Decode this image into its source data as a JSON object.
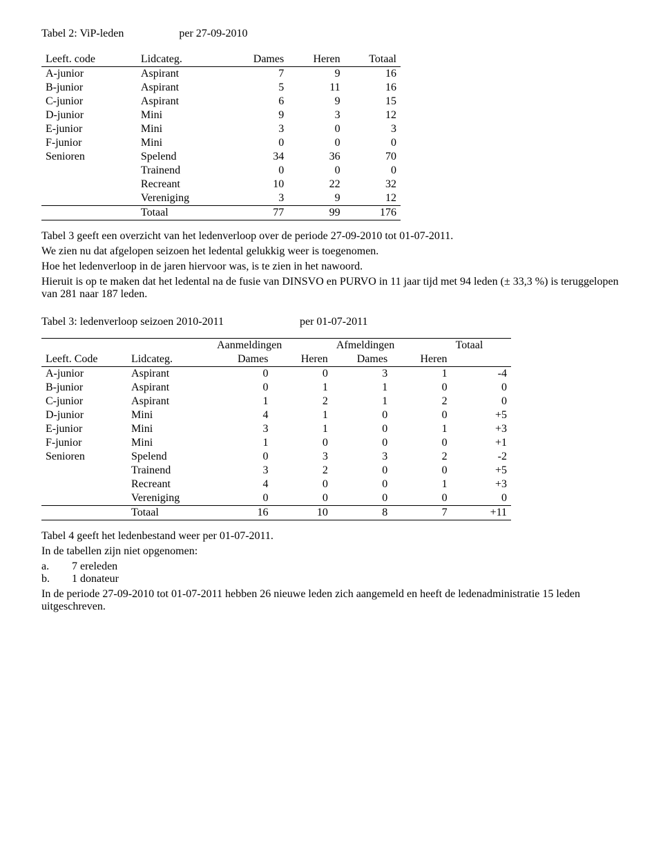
{
  "table2": {
    "title": "Tabel 2: ViP-leden",
    "date": "per 27-09-2010",
    "headers": {
      "c1": "Leeft. code",
      "c2": "Lidcateg.",
      "c3": "Dames",
      "c4": "Heren",
      "c5": "Totaal"
    },
    "rows": [
      {
        "c1": "A-junior",
        "c2": "Aspirant",
        "d": "7",
        "h": "9",
        "t": "16"
      },
      {
        "c1": "B-junior",
        "c2": "Aspirant",
        "d": "5",
        "h": "11",
        "t": "16"
      },
      {
        "c1": "C-junior",
        "c2": "Aspirant",
        "d": "6",
        "h": "9",
        "t": "15"
      },
      {
        "c1": "D-junior",
        "c2": "Mini",
        "d": "9",
        "h": "3",
        "t": "12"
      },
      {
        "c1": "E-junior",
        "c2": "Mini",
        "d": "3",
        "h": "0",
        "t": "3"
      },
      {
        "c1": "F-junior",
        "c2": "Mini",
        "d": "0",
        "h": "0",
        "t": "0"
      },
      {
        "c1": "Senioren",
        "c2": "Spelend",
        "d": "34",
        "h": "36",
        "t": "70"
      },
      {
        "c1": "",
        "c2": "Trainend",
        "d": "0",
        "h": "0",
        "t": "0"
      },
      {
        "c1": "",
        "c2": "Recreant",
        "d": "10",
        "h": "22",
        "t": "32"
      },
      {
        "c1": "",
        "c2": "Vereniging",
        "d": "3",
        "h": "9",
        "t": "12"
      }
    ],
    "total": {
      "label": "Totaal",
      "d": "77",
      "h": "99",
      "t": "176"
    }
  },
  "para1": {
    "l1": "Tabel 3 geeft een overzicht van het ledenverloop over de periode 27-09-2010 tot 01-07-2011.",
    "l2": "We zien nu dat afgelopen seizoen het ledental gelukkig weer is toegenomen.",
    "l3": "Hoe het ledenverloop in de jaren hiervoor was, is te zien in het nawoord.",
    "l4": "Hieruit is op te maken dat het ledental na de fusie van DINSVO en PURVO in 11 jaar tijd met 94 leden (± 33,3 %) is teruggelopen van 281 naar 187 leden."
  },
  "table3": {
    "title": "Tabel 3: ledenverloop seizoen 2010-2011",
    "date": "per 01-07-2011",
    "group_headers": {
      "g1": "Aanmeldingen",
      "g2": "Afmeldingen",
      "g3": "Totaal"
    },
    "headers": {
      "c1": "Leeft. Code",
      "c2": "Lidcateg.",
      "c3": "Dames",
      "c4": "Heren",
      "c5": "Dames",
      "c6": "Heren"
    },
    "rows": [
      {
        "c1": "A-junior",
        "c2": "Aspirant",
        "ad": "0",
        "ah": "0",
        "fd": "3",
        "fh": "1",
        "t": "-4"
      },
      {
        "c1": "B-junior",
        "c2": "Aspirant",
        "ad": "0",
        "ah": "1",
        "fd": "1",
        "fh": "0",
        "t": "0"
      },
      {
        "c1": "C-junior",
        "c2": "Aspirant",
        "ad": "1",
        "ah": "2",
        "fd": "1",
        "fh": "2",
        "t": "0"
      },
      {
        "c1": "D-junior",
        "c2": "Mini",
        "ad": "4",
        "ah": "1",
        "fd": "0",
        "fh": "0",
        "t": "+5"
      },
      {
        "c1": "E-junior",
        "c2": "Mini",
        "ad": "3",
        "ah": "1",
        "fd": "0",
        "fh": "1",
        "t": "+3"
      },
      {
        "c1": "F-junior",
        "c2": "Mini",
        "ad": "1",
        "ah": "0",
        "fd": "0",
        "fh": "0",
        "t": "+1"
      },
      {
        "c1": "Senioren",
        "c2": "Spelend",
        "ad": "0",
        "ah": "3",
        "fd": "3",
        "fh": "2",
        "t": "-2"
      },
      {
        "c1": "",
        "c2": "Trainend",
        "ad": "3",
        "ah": "2",
        "fd": "0",
        "fh": "0",
        "t": "+5"
      },
      {
        "c1": "",
        "c2": "Recreant",
        "ad": "4",
        "ah": "0",
        "fd": "0",
        "fh": "1",
        "t": "+3"
      },
      {
        "c1": "",
        "c2": "Vereniging",
        "ad": "0",
        "ah": "0",
        "fd": "0",
        "fh": "0",
        "t": "0"
      }
    ],
    "total": {
      "label": "Totaal",
      "ad": "16",
      "ah": "10",
      "fd": "8",
      "fh": "7",
      "t": "+11"
    }
  },
  "para2": {
    "l1": "Tabel 4 geeft het ledenbestand weer per 01-07-2011.",
    "l2": "In de tabellen zijn niet opgenomen:",
    "la": "a.",
    "la_txt": "7 ereleden",
    "lb": "b.",
    "lb_txt": "1 donateur",
    "l3": "In de periode 27-09-2010 tot 01-07-2011 hebben 26 nieuwe leden zich aangemeld en heeft de ledenadministratie 15 leden uitgeschreven."
  }
}
